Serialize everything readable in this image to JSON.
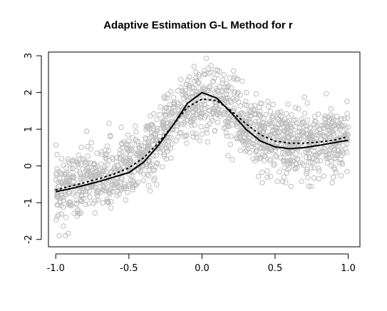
{
  "chart_data": {
    "type": "scatter",
    "title": "Adaptive Estimation G-L Method for r",
    "xlabel": "",
    "ylabel": "",
    "xlim": [
      -1.05,
      1.08
    ],
    "ylim": [
      -2.2,
      3.1
    ],
    "x_ticks": [
      -1.0,
      -0.5,
      0.0,
      0.5,
      1.0
    ],
    "x_tick_labels": [
      "-1.0",
      "-0.5",
      "0.0",
      "0.5",
      "1.0"
    ],
    "y_ticks": [
      -2,
      -1,
      0,
      1,
      2,
      3
    ],
    "y_tick_labels": [
      "-2",
      "-1",
      "0",
      "1",
      "2",
      "3"
    ],
    "grid": false,
    "scatter": {
      "x_range": [
        -1.0,
        1.0
      ],
      "count": 1500,
      "noise_sd": 0.45,
      "color": "#bdbdbd"
    },
    "series": [
      {
        "style": "solid",
        "color": "#000000",
        "x": [
          -1.0,
          -0.9,
          -0.8,
          -0.7,
          -0.6,
          -0.5,
          -0.4,
          -0.3,
          -0.2,
          -0.1,
          0.0,
          0.1,
          0.2,
          0.3,
          0.4,
          0.5,
          0.6,
          0.7,
          0.8,
          0.9,
          1.0
        ],
        "y": [
          -0.7,
          -0.62,
          -0.52,
          -0.42,
          -0.3,
          -0.18,
          0.1,
          0.55,
          1.1,
          1.7,
          2.0,
          1.85,
          1.45,
          1.0,
          0.68,
          0.52,
          0.47,
          0.5,
          0.56,
          0.63,
          0.7
        ]
      },
      {
        "style": "dotted",
        "color": "#000000",
        "x": [
          -1.0,
          -0.9,
          -0.8,
          -0.7,
          -0.6,
          -0.5,
          -0.4,
          -0.3,
          -0.2,
          -0.1,
          0.0,
          0.1,
          0.2,
          0.3,
          0.4,
          0.5,
          0.6,
          0.7,
          0.8,
          0.9,
          1.0
        ],
        "y": [
          -0.65,
          -0.55,
          -0.45,
          -0.34,
          -0.22,
          -0.05,
          0.22,
          0.62,
          1.1,
          1.6,
          1.82,
          1.78,
          1.5,
          1.15,
          0.85,
          0.68,
          0.62,
          0.62,
          0.65,
          0.7,
          0.8
        ]
      }
    ]
  }
}
